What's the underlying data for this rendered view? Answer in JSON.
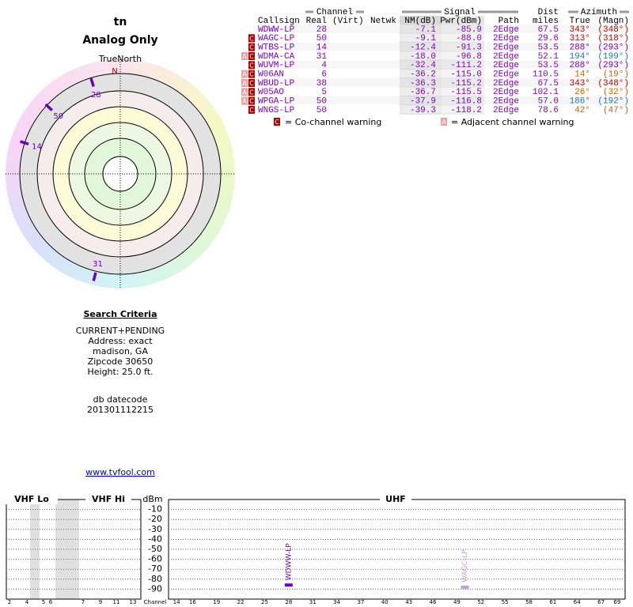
{
  "header": {
    "title": "tn",
    "subtitle": "Analog Only"
  },
  "polar": {
    "north_label": "TrueNorth",
    "north_marker": "N",
    "color": "#6a00c0",
    "markers": [
      {
        "channel": "28",
        "azimuth": 343,
        "nm": -7.1
      },
      {
        "channel": "50",
        "azimuth": 313,
        "nm": -9.1
      },
      {
        "channel": "14",
        "azimuth": 288,
        "nm": -12.4
      },
      {
        "channel": "31",
        "azimuth": 194,
        "nm": -18.0
      }
    ]
  },
  "table": {
    "group_headers": {
      "channel": "Channel",
      "signal": "Signal",
      "dist": "Dist",
      "azimuth": "Azimuth"
    },
    "columns": [
      "Callsign",
      "Real",
      "(Virt)",
      "Netwk",
      "NM(dB)",
      "Pwr(dBm)",
      "Path",
      "miles",
      "True",
      "(Magn)"
    ],
    "row_color": "#8000c0",
    "rows": [
      {
        "callsign": "WDWW-LP",
        "real": "28",
        "nm": "-7.1",
        "pwr": "-85.9",
        "path": "2Edge",
        "dist": "67.5",
        "true": "343°",
        "magn": "(348°)",
        "co": false,
        "adj": false,
        "az_color": "#c00000"
      },
      {
        "callsign": "WAGC-LP",
        "real": "50",
        "nm": "-9.1",
        "pwr": "-88.0",
        "path": "2Edge",
        "dist": "29.6",
        "true": "313°",
        "magn": "(318°)",
        "co": true,
        "adj": false,
        "az_color": "#c00000"
      },
      {
        "callsign": "WTBS-LP",
        "real": "14",
        "nm": "-12.4",
        "pwr": "-91.3",
        "path": "2Edge",
        "dist": "53.5",
        "true": "288°",
        "magn": "(293°)",
        "co": true,
        "adj": false,
        "az_color": "#8000c0"
      },
      {
        "callsign": "WDMA-CA",
        "real": "31",
        "nm": "-18.0",
        "pwr": "-96.8",
        "path": "2Edge",
        "dist": "52.1",
        "true": "194°",
        "magn": "(199°)",
        "co": true,
        "adj": true,
        "az_color": "#1080b0"
      },
      {
        "callsign": "WUVM-LP",
        "real": "4",
        "nm": "-32.4",
        "pwr": "-111.2",
        "path": "2Edge",
        "dist": "53.5",
        "true": "288°",
        "magn": "(293°)",
        "co": true,
        "adj": false,
        "az_color": "#8000c0"
      },
      {
        "callsign": "W06AN",
        "real": "6",
        "nm": "-36.2",
        "pwr": "-115.0",
        "path": "2Edge",
        "dist": "110.5",
        "true": "14°",
        "magn": "(19°)",
        "co": true,
        "adj": true,
        "az_color": "#d06000"
      },
      {
        "callsign": "WBUD-LP",
        "real": "38",
        "nm": "-36.3",
        "pwr": "-115.2",
        "path": "2Edge",
        "dist": "67.5",
        "true": "343°",
        "magn": "(348°)",
        "co": true,
        "adj": true,
        "az_color": "#c00000"
      },
      {
        "callsign": "W05AO",
        "real": "5",
        "nm": "-36.7",
        "pwr": "-115.5",
        "path": "2Edge",
        "dist": "102.1",
        "true": "26°",
        "magn": "(32°)",
        "co": true,
        "adj": true,
        "az_color": "#d06000"
      },
      {
        "callsign": "WPGA-LP",
        "real": "50",
        "nm": "-37.9",
        "pwr": "-116.8",
        "path": "2Edge",
        "dist": "57.0",
        "true": "186°",
        "magn": "(192°)",
        "co": true,
        "adj": true,
        "az_color": "#1080b0"
      },
      {
        "callsign": "WNGS-LP",
        "real": "50",
        "nm": "-39.3",
        "pwr": "-118.2",
        "path": "2Edge",
        "dist": "78.6",
        "true": "42°",
        "magn": "(47°)",
        "co": true,
        "adj": false,
        "az_color": "#d06000"
      }
    ]
  },
  "legend": {
    "co_icon": "C",
    "co_text": "= Co-channel warning",
    "adj_icon": "A",
    "adj_text": "= Adjacent channel warning"
  },
  "search": {
    "title": "Search Criteria",
    "lines": [
      "CURRENT+PENDING",
      "Address: exact",
      "madison, GA",
      "Zipcode 30650",
      "Height: 25.0 ft."
    ],
    "db_label": "db datecode",
    "db_code": "201301112215",
    "link": "www.tvfool.com"
  },
  "spectrum": {
    "bands": [
      "VHF Lo",
      "VHF Hi",
      "UHF"
    ],
    "y_label": "dBm",
    "ylim": [
      -100,
      0
    ],
    "yticks": [
      -10,
      -20,
      -30,
      -40,
      -50,
      -60,
      -70,
      -80,
      -90
    ],
    "vhf_channels": [
      2,
      4,
      5,
      6,
      7,
      9,
      11,
      13
    ],
    "x_label": "Channel",
    "uhf_xlim": [
      13,
      70
    ],
    "uhf_channels": [
      14,
      16,
      19,
      22,
      25,
      28,
      31,
      34,
      37,
      40,
      43,
      46,
      49,
      52,
      55,
      58,
      61,
      64,
      67,
      69
    ],
    "markers": [
      {
        "callsign": "WDWW-LP",
        "channel": 28,
        "pwr": -85.9,
        "color": "#7000c0"
      },
      {
        "callsign": "WAGC-LP",
        "channel": 50,
        "pwr": -88.0,
        "color": "#c0a0e0"
      }
    ]
  }
}
